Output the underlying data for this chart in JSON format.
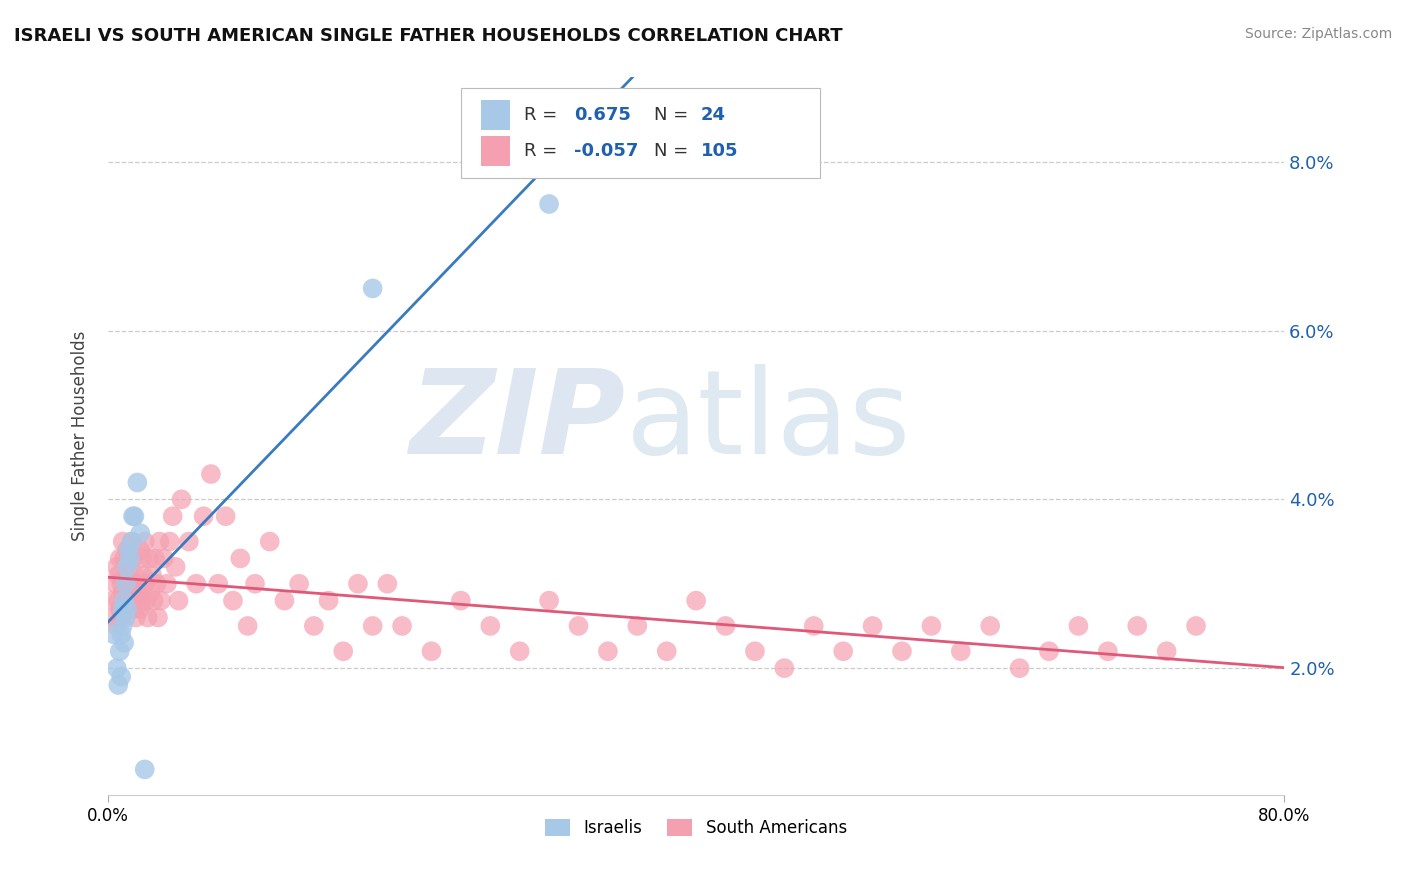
{
  "title": "ISRAELI VS SOUTH AMERICAN SINGLE FATHER HOUSEHOLDS CORRELATION CHART",
  "source": "Source: ZipAtlas.com",
  "ylabel": "Single Father Households",
  "xlim": [
    0.0,
    0.8
  ],
  "ylim": [
    0.005,
    0.09
  ],
  "ytick_vals": [
    0.02,
    0.04,
    0.06,
    0.08
  ],
  "ytick_labels": [
    "2.0%",
    "4.0%",
    "6.0%",
    "8.0%"
  ],
  "xtick_vals": [
    0.0,
    0.8
  ],
  "xtick_labels": [
    "0.0%",
    "80.0%"
  ],
  "israeli_R": 0.675,
  "israeli_N": 24,
  "south_american_R": -0.057,
  "south_american_N": 105,
  "israeli_color": "#a8c8e8",
  "south_american_color": "#f4a0b0",
  "israeli_line_color": "#3a7bbf",
  "south_american_line_color": "#e05878",
  "legend_R_color": "#2060b0",
  "background_color": "#ffffff",
  "grid_color": "#cccccc",
  "israeli_x": [
    0.004,
    0.006,
    0.007,
    0.008,
    0.009,
    0.009,
    0.01,
    0.01,
    0.011,
    0.011,
    0.012,
    0.012,
    0.013,
    0.013,
    0.014,
    0.015,
    0.016,
    0.017,
    0.018,
    0.02,
    0.022,
    0.025,
    0.18,
    0.3
  ],
  "israeli_y": [
    0.024,
    0.02,
    0.018,
    0.022,
    0.024,
    0.019,
    0.025,
    0.027,
    0.028,
    0.023,
    0.03,
    0.026,
    0.032,
    0.027,
    0.034,
    0.033,
    0.035,
    0.038,
    0.038,
    0.042,
    0.036,
    0.008,
    0.065,
    0.075
  ],
  "south_american_x": [
    0.003,
    0.004,
    0.005,
    0.006,
    0.006,
    0.007,
    0.007,
    0.008,
    0.008,
    0.009,
    0.009,
    0.01,
    0.01,
    0.011,
    0.011,
    0.012,
    0.012,
    0.013,
    0.013,
    0.014,
    0.014,
    0.015,
    0.015,
    0.016,
    0.016,
    0.017,
    0.017,
    0.018,
    0.018,
    0.019,
    0.019,
    0.02,
    0.021,
    0.022,
    0.022,
    0.023,
    0.023,
    0.024,
    0.025,
    0.025,
    0.026,
    0.027,
    0.028,
    0.029,
    0.03,
    0.031,
    0.032,
    0.033,
    0.034,
    0.035,
    0.036,
    0.038,
    0.04,
    0.042,
    0.044,
    0.046,
    0.048,
    0.05,
    0.055,
    0.06,
    0.065,
    0.07,
    0.075,
    0.08,
    0.085,
    0.09,
    0.095,
    0.1,
    0.11,
    0.12,
    0.13,
    0.14,
    0.15,
    0.16,
    0.17,
    0.18,
    0.19,
    0.2,
    0.22,
    0.24,
    0.26,
    0.28,
    0.3,
    0.32,
    0.34,
    0.36,
    0.38,
    0.4,
    0.42,
    0.44,
    0.46,
    0.48,
    0.5,
    0.52,
    0.54,
    0.56,
    0.58,
    0.6,
    0.62,
    0.64,
    0.66,
    0.68,
    0.7,
    0.72,
    0.74
  ],
  "south_american_y": [
    0.028,
    0.026,
    0.03,
    0.025,
    0.032,
    0.028,
    0.031,
    0.027,
    0.033,
    0.026,
    0.03,
    0.029,
    0.035,
    0.027,
    0.033,
    0.028,
    0.031,
    0.03,
    0.034,
    0.027,
    0.031,
    0.028,
    0.033,
    0.029,
    0.035,
    0.027,
    0.033,
    0.028,
    0.031,
    0.03,
    0.026,
    0.03,
    0.029,
    0.034,
    0.027,
    0.033,
    0.028,
    0.031,
    0.03,
    0.035,
    0.028,
    0.026,
    0.033,
    0.029,
    0.031,
    0.028,
    0.033,
    0.03,
    0.026,
    0.035,
    0.028,
    0.033,
    0.03,
    0.035,
    0.038,
    0.032,
    0.028,
    0.04,
    0.035,
    0.03,
    0.038,
    0.043,
    0.03,
    0.038,
    0.028,
    0.033,
    0.025,
    0.03,
    0.035,
    0.028,
    0.03,
    0.025,
    0.028,
    0.022,
    0.03,
    0.025,
    0.03,
    0.025,
    0.022,
    0.028,
    0.025,
    0.022,
    0.028,
    0.025,
    0.022,
    0.025,
    0.022,
    0.028,
    0.025,
    0.022,
    0.02,
    0.025,
    0.022,
    0.025,
    0.022,
    0.025,
    0.022,
    0.025,
    0.02,
    0.022,
    0.025,
    0.022,
    0.025,
    0.022,
    0.025
  ]
}
